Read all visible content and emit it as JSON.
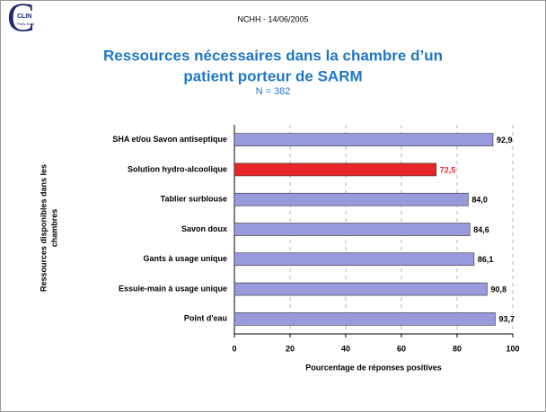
{
  "logo": {
    "letter": "C",
    "text": "CLIN",
    "subtext": "Paris-Nord"
  },
  "header": "NCHH - 14/06/2005",
  "chart_data": {
    "type": "bar",
    "orientation": "horizontal",
    "title": [
      "Ressources nécessaires dans la chambre d’un",
      "patient porteur de SARM"
    ],
    "subtitle": "N = 382",
    "y_label": [
      "Ressources disponibles dans les",
      "chambres"
    ],
    "x_label": "Pourcentage de réponses positives",
    "categories": [
      "SHA et/ou Savon antiseptique",
      "Solution hydro-alcoolique",
      "Tablier surblouse",
      "Savon doux",
      "Gants à usage unique",
      "Essuie-main à usage unique",
      "Point d'eau"
    ],
    "values": [
      92.9,
      72.5,
      84.0,
      84.6,
      86.1,
      90.8,
      93.7
    ],
    "value_labels": [
      "92,9",
      "72,5",
      "84,0",
      "84,6",
      "86,1",
      "90,8",
      "93,7"
    ],
    "colors": [
      "#9999dd",
      "#e8262a",
      "#9999dd",
      "#9999dd",
      "#9999dd",
      "#9999dd",
      "#9999dd"
    ],
    "label_colors": [
      "#000000",
      "#e8262a",
      "#000000",
      "#000000",
      "#000000",
      "#000000",
      "#000000"
    ],
    "xlim": [
      0,
      100
    ],
    "xticks": [
      0,
      20,
      40,
      60,
      80,
      100
    ],
    "grid": true
  }
}
